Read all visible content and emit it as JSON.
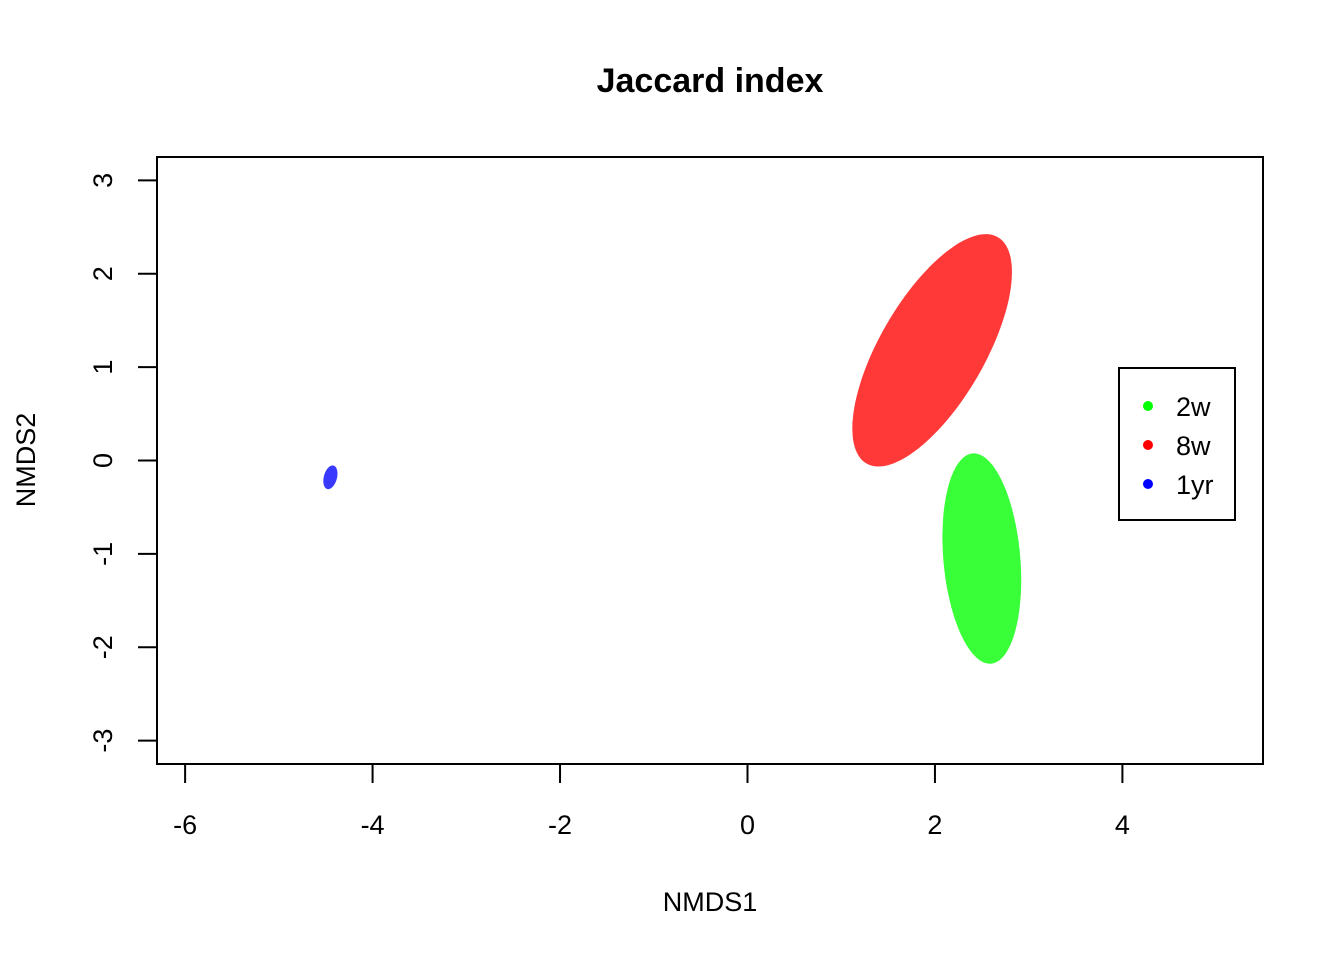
{
  "chart_data": {
    "type": "scatter",
    "title": "Jaccard index",
    "xlabel": "NMDS1",
    "ylabel": "NMDS2",
    "xlim": [
      -6.3,
      5.5
    ],
    "ylim": [
      -3.25,
      3.25
    ],
    "x_ticks": [
      -6,
      -4,
      -2,
      0,
      2,
      4
    ],
    "y_ticks": [
      -3,
      -2,
      -1,
      0,
      1,
      2,
      3
    ],
    "grid": false,
    "legend_position": "right",
    "series": [
      {
        "name": "2w",
        "color": "#00ff00",
        "ellipse": {
          "cx": 2.5,
          "cy": -1.05,
          "rx": 0.41,
          "ry": 1.13,
          "angle_deg": -5
        }
      },
      {
        "name": "8w",
        "color": "#ff0000",
        "ellipse": {
          "cx": 1.97,
          "cy": 1.18,
          "rx": 0.56,
          "ry": 1.4,
          "angle_deg": 30
        }
      },
      {
        "name": "1yr",
        "color": "#0000ff",
        "ellipse": {
          "cx": -4.45,
          "cy": -0.18,
          "rx": 0.07,
          "ry": 0.13,
          "angle_deg": 15
        }
      }
    ]
  }
}
